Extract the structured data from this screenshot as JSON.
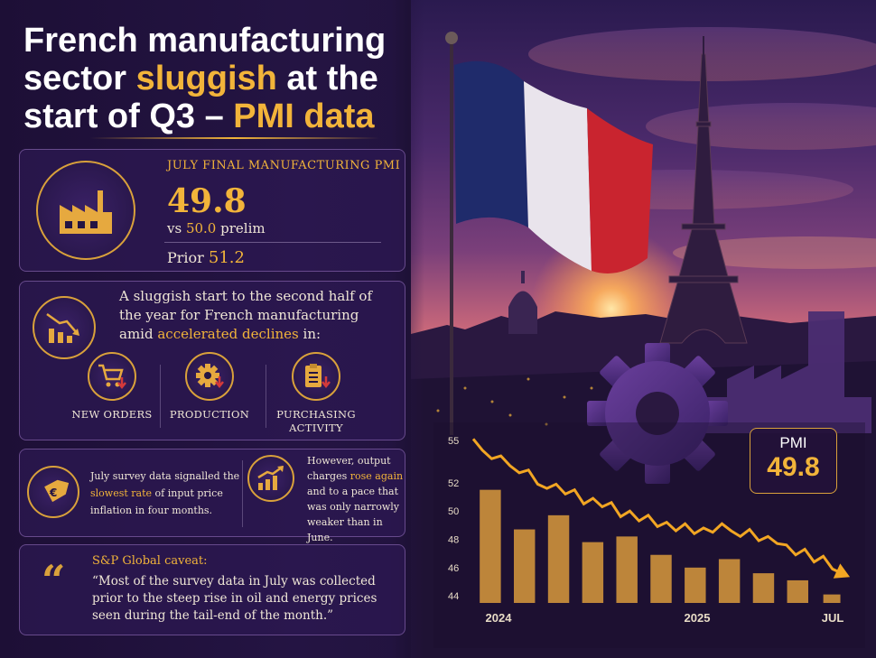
{
  "headline": {
    "part1": "French manufacturing sector ",
    "highlight1": "sluggish",
    "part2": " at the start of Q3 – ",
    "highlight2": "PMI data"
  },
  "pmi_card": {
    "label": "JULY FINAL MANUFACTURING PMI",
    "value": "49.8",
    "vs_prefix": "vs ",
    "prelim_value": "50.0",
    "prelim_suffix": " prelim",
    "prior_label": "Prior ",
    "prior_value": "51.2",
    "icon": "factory-icon"
  },
  "declines_card": {
    "text1": "A sluggish start to the second half of the year for French manufacturing amid ",
    "highlight": "accelerated declines",
    "text2": " in:",
    "icon": "declining-chart-icon",
    "items": [
      {
        "label": "NEW ORDERS",
        "icon": "shopping-cart-icon"
      },
      {
        "label": "PRODUCTION",
        "icon": "gear-icon"
      },
      {
        "label": "PURCHASING ACTIVITY",
        "icon": "clipboard-icon"
      }
    ]
  },
  "prices_card": {
    "left_text1": "July survey data signalled the ",
    "left_highlight": "slowest rate",
    "left_text2": " of input price inflation in four months.",
    "right_text1": "However, output charges ",
    "right_highlight": "rose again",
    "right_text2": " and to a pace that was only narrowly weaker than in June.",
    "left_icon": "euro-price-tag-icon",
    "right_icon": "rising-chart-icon"
  },
  "caveat_card": {
    "title": "S&P Global caveat:",
    "quote_mark": "“",
    "body": "“Most of the survey data in July was collected prior to the steep rise in oil and energy prices seen during the tail-end of the month.”"
  },
  "pmi_badge": {
    "label": "PMI",
    "value": "49.8"
  },
  "chart_data": {
    "type": "bar",
    "yticks": [
      55,
      52,
      50,
      48,
      46,
      44
    ],
    "ylim": [
      43.5,
      55.5
    ],
    "xlabels": [
      "2024",
      "2025",
      "JUL"
    ],
    "values": [
      51.5,
      48.7,
      49.7,
      47.8,
      48.2,
      46.9,
      46.0,
      46.6,
      45.6,
      45.1,
      44.1
    ],
    "line": [
      55.1,
      54.3,
      53.7,
      53.9,
      53.2,
      52.7,
      52.9,
      51.9,
      51.6,
      51.9,
      51.2,
      51.5,
      50.5,
      50.9,
      50.3,
      50.6,
      49.6,
      50.0,
      49.3,
      49.7,
      48.9,
      49.2,
      48.6,
      49.1,
      48.4,
      48.8,
      48.5,
      49.1,
      48.6,
      48.2,
      48.7,
      47.9,
      48.2,
      47.7,
      47.6,
      46.9,
      47.3,
      46.4,
      46.8,
      45.9,
      45.6
    ],
    "colors": {
      "bar": "#d99a3c",
      "line": "#f2a623"
    }
  }
}
